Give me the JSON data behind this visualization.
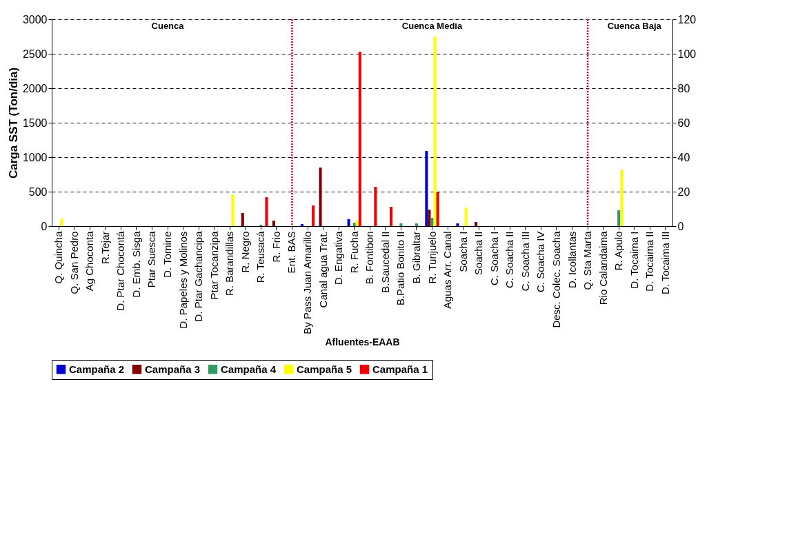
{
  "chart_data": {
    "type": "bar",
    "ylabel": "Carga SST (Ton/dia)",
    "xlabel": "Afluentes-EAAB",
    "categories": [
      "Q. Quincha",
      "Q. San Pedro",
      "Ag Choconta",
      "R.Tejar",
      "D. Ptar Chocontá",
      "D. Emb. Sisga",
      "Ptar Suesca",
      "D. Tomine",
      "D. Papeles y Molinos",
      "D. Ptar Gachancipa",
      "Ptar Tocanzipa",
      "R. Barandillas",
      "R. Negro",
      "R. Teusacá",
      "R. Frio",
      "Ent. BAS",
      "By Pass Juan Amarillo",
      "Canal agua Trat.",
      "D. Engativa",
      "R. Fucha",
      "B. Fontibon",
      "B.Saucedal II",
      "B.Patio Bonito II",
      "B. Gibraltar",
      "R. Tunjuelo",
      "Aguas Arr. Canal",
      "Soacha I",
      "Soacha II",
      "C. Soacha I",
      "C. Soacha II",
      "C. Soacha III",
      "C. Soacha IV",
      "Desc. Colec. Soacha",
      "D. Icollantas",
      "Q. Sta Marta",
      "Rio Calandaima",
      "R. Apulo",
      "D. Tocaima I",
      "D. Tocaima II",
      "D. Tocaima III"
    ],
    "series": [
      {
        "name": "Campaña 2",
        "color": "#0000cc",
        "values": [
          null,
          null,
          null,
          null,
          null,
          null,
          null,
          null,
          null,
          null,
          null,
          null,
          null,
          null,
          null,
          null,
          30,
          null,
          null,
          100,
          null,
          null,
          null,
          null,
          1090,
          null,
          40,
          null,
          null,
          null,
          null,
          null,
          null,
          null,
          null,
          null,
          null,
          null,
          null,
          null
        ]
      },
      {
        "name": "Campaña 3",
        "color": "#800000",
        "values": [
          null,
          null,
          null,
          null,
          null,
          null,
          null,
          null,
          null,
          null,
          null,
          null,
          190,
          null,
          80,
          null,
          null,
          850,
          null,
          null,
          null,
          null,
          null,
          null,
          240,
          null,
          null,
          60,
          null,
          null,
          null,
          null,
          null,
          null,
          null,
          null,
          null,
          null,
          null,
          null
        ]
      },
      {
        "name": "Campaña 4",
        "color": "#339966",
        "values": [
          null,
          null,
          null,
          null,
          null,
          null,
          null,
          null,
          null,
          null,
          null,
          null,
          null,
          20,
          null,
          null,
          null,
          null,
          null,
          50,
          null,
          null,
          40,
          40,
          120,
          null,
          null,
          null,
          null,
          null,
          null,
          null,
          null,
          null,
          null,
          null,
          230,
          null,
          null,
          null
        ]
      },
      {
        "name": "Campaña 5",
        "color": "#ffff00",
        "values": [
          110,
          null,
          null,
          null,
          null,
          null,
          null,
          null,
          null,
          null,
          null,
          460,
          null,
          null,
          null,
          null,
          null,
          null,
          null,
          80,
          null,
          null,
          null,
          null,
          2750,
          null,
          270,
          null,
          null,
          null,
          null,
          null,
          null,
          null,
          null,
          null,
          820,
          null,
          null,
          null
        ]
      },
      {
        "name": "Campaña 1",
        "color": "#ee0000",
        "values": [
          null,
          null,
          null,
          null,
          null,
          null,
          null,
          null,
          null,
          null,
          null,
          null,
          null,
          420,
          null,
          null,
          300,
          null,
          null,
          2530,
          570,
          280,
          null,
          null,
          490,
          null,
          null,
          null,
          null,
          null,
          null,
          null,
          null,
          null,
          null,
          null,
          null,
          null,
          null,
          null
        ]
      }
    ],
    "ylim": [
      0,
      3000
    ],
    "yticks": [
      0,
      500,
      1000,
      1500,
      2000,
      2500,
      3000
    ],
    "y2lim": [
      0,
      120
    ],
    "y2ticks": [
      0,
      20,
      40,
      60,
      80,
      100,
      120
    ],
    "grid": "y",
    "legend": "bottom",
    "ref_lines": [
      {
        "axis": "x",
        "value": "Ent. BAS",
        "color": "#cc0033",
        "line_style": "dotted"
      },
      {
        "axis": "x",
        "value": "Q. Sta Marta",
        "color": "#cc0033",
        "line_style": "dotted"
      }
    ],
    "annotations": [
      "Cuenca",
      "Cuenca Media",
      "Cuenca Baja"
    ]
  }
}
